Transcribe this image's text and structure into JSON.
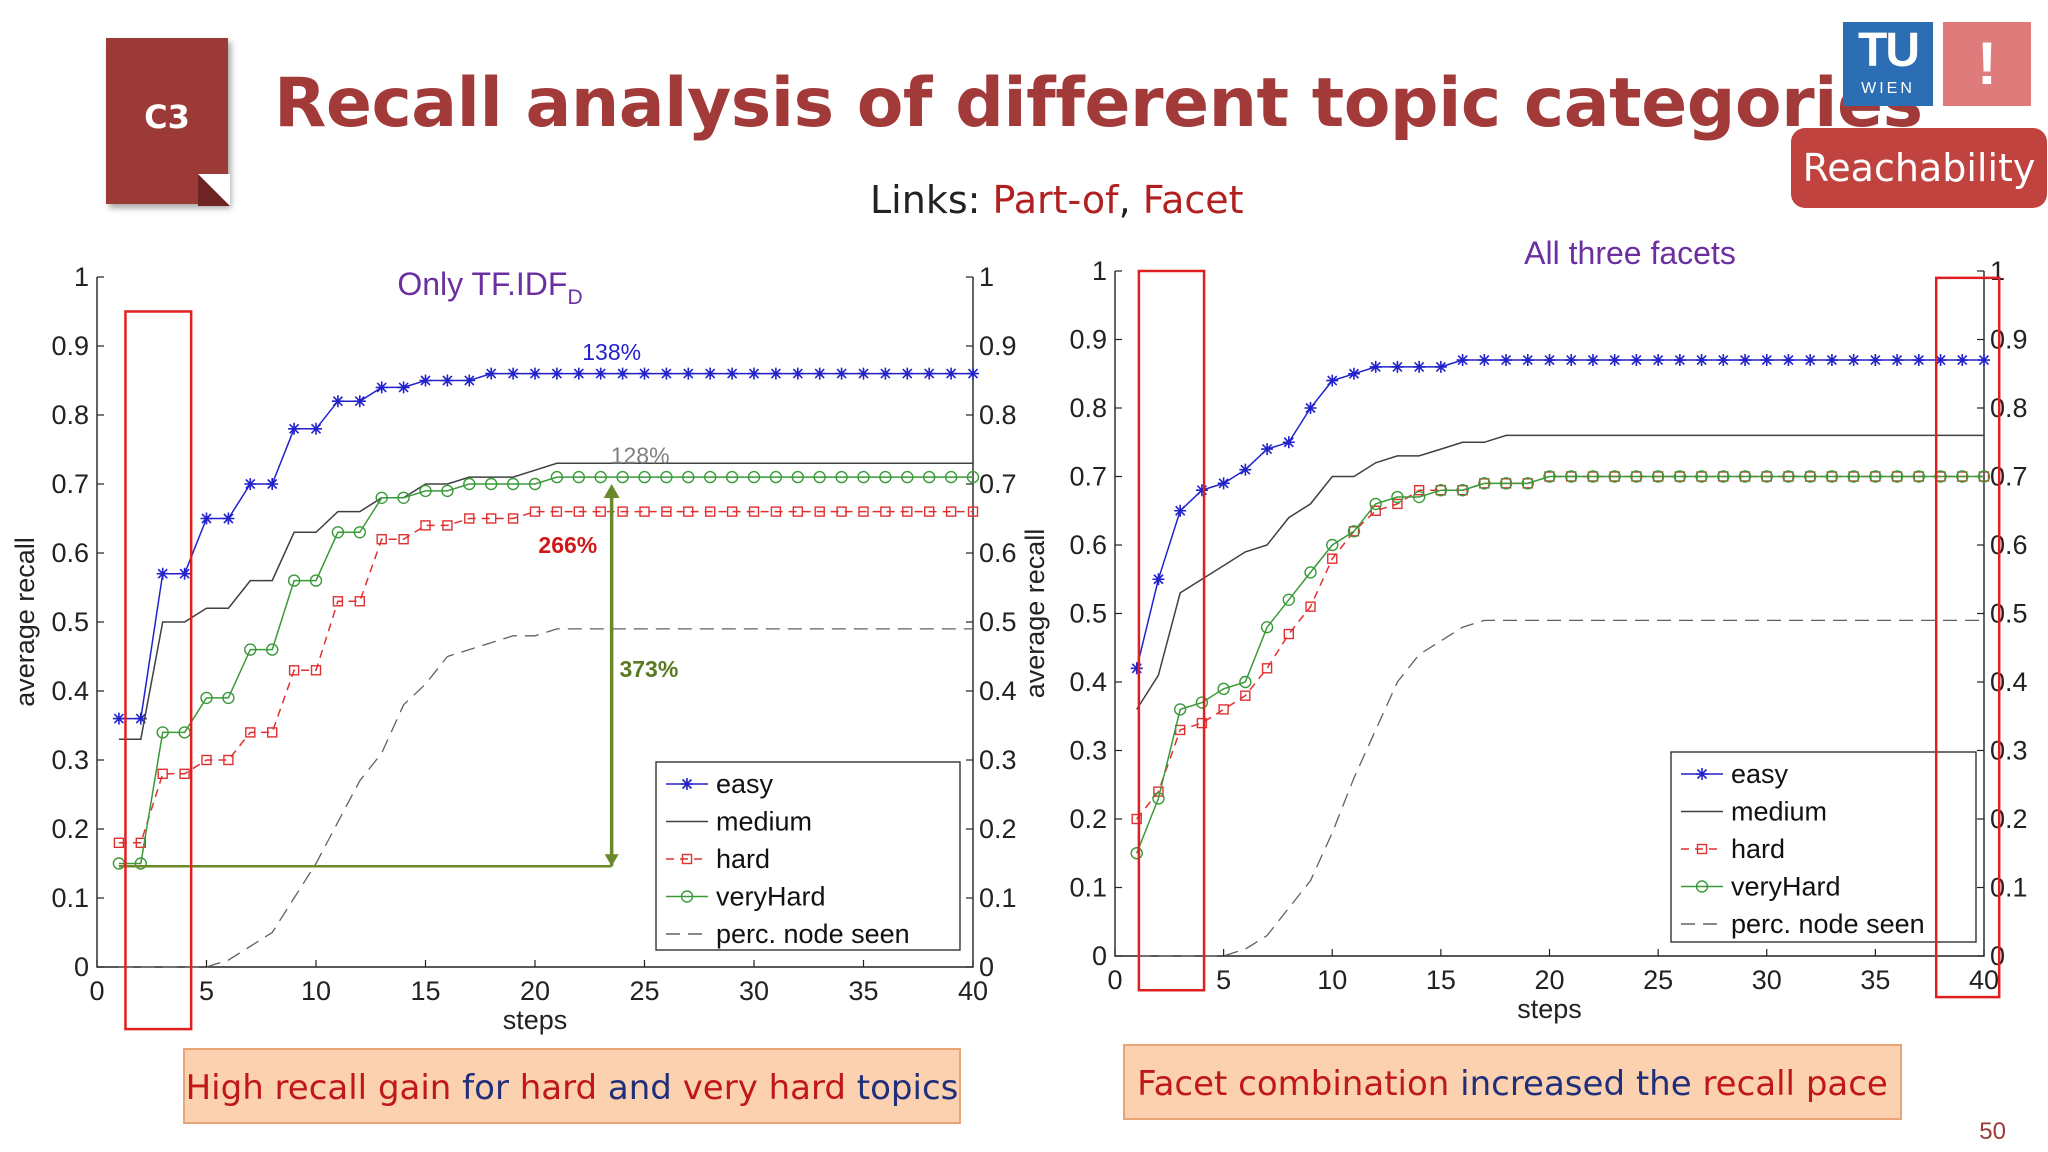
{
  "slide": {
    "badge": "C3",
    "title": "Recall analysis of different topic categories",
    "links_prefix": "Links: ",
    "links_a": "Part-of",
    "links_sep": ", ",
    "links_b": "Facet",
    "logo_tu": "TU",
    "logo_wien": "WIEN",
    "logo_excl": "!",
    "reachability": "Reachability",
    "page_number": "50",
    "colors": {
      "title": "#a23a3a",
      "badge": "#9b3a36",
      "easy": "#2222cc",
      "hard": "#e03030",
      "veryHard": "#3a9a3a",
      "medium": "#404040",
      "seen": "#606060",
      "annotation_arrow": "#6a8a2a"
    }
  },
  "notes": {
    "left": {
      "p1": "High recall gain",
      "p2": " for ",
      "p3": "hard",
      "p4": " and ",
      "p5": "very hard",
      "p6": " topics"
    },
    "right": {
      "p1": "Facet combination",
      "p2": " increased the ",
      "p3": "recall pace"
    }
  },
  "chart_data": [
    {
      "type": "line",
      "title": "Only TF.IDF",
      "title_subscript": "D",
      "xlabel": "steps",
      "ylabel": "average recall",
      "xlim": [
        0,
        40
      ],
      "ylim": [
        0,
        1
      ],
      "xticks": [
        0,
        5,
        10,
        15,
        20,
        25,
        30,
        35,
        40
      ],
      "yticks": [
        0,
        0.1,
        0.2,
        0.3,
        0.4,
        0.5,
        0.6,
        0.7,
        0.8,
        0.9,
        1
      ],
      "ytick_labels": [
        "0",
        "0.1",
        "0.2",
        "0.3",
        "0.4",
        "0.5",
        "0.6",
        "0.7",
        "0.8",
        "0.9",
        "1"
      ],
      "xtick_labels": [
        "0",
        "5",
        "10",
        "15",
        "20",
        "25",
        "30",
        "35",
        "40"
      ],
      "right_yticks": true,
      "grid": false,
      "legend": "bottom-right",
      "series": [
        {
          "name": "easy",
          "marker": "asterisk",
          "dash": "solid",
          "y": [
            0.36,
            0.36,
            0.57,
            0.57,
            0.65,
            0.65,
            0.7,
            0.7,
            0.78,
            0.78,
            0.82,
            0.82,
            0.84,
            0.84,
            0.85,
            0.85,
            0.85,
            0.86,
            0.86,
            0.86,
            0.86,
            0.86,
            0.86,
            0.86,
            0.86,
            0.86,
            0.86,
            0.86,
            0.86,
            0.86,
            0.86,
            0.86,
            0.86,
            0.86,
            0.86,
            0.86,
            0.86,
            0.86,
            0.86,
            0.86
          ]
        },
        {
          "name": "medium",
          "marker": "none",
          "dash": "solid",
          "y": [
            0.33,
            0.33,
            0.5,
            0.5,
            0.52,
            0.52,
            0.56,
            0.56,
            0.63,
            0.63,
            0.66,
            0.66,
            0.68,
            0.68,
            0.7,
            0.7,
            0.71,
            0.71,
            0.71,
            0.72,
            0.73,
            0.73,
            0.73,
            0.73,
            0.73,
            0.73,
            0.73,
            0.73,
            0.73,
            0.73,
            0.73,
            0.73,
            0.73,
            0.73,
            0.73,
            0.73,
            0.73,
            0.73,
            0.73,
            0.73
          ]
        },
        {
          "name": "hard",
          "marker": "square",
          "dash": "dashed",
          "y": [
            0.18,
            0.18,
            0.28,
            0.28,
            0.3,
            0.3,
            0.34,
            0.34,
            0.43,
            0.43,
            0.53,
            0.53,
            0.62,
            0.62,
            0.64,
            0.64,
            0.65,
            0.65,
            0.65,
            0.66,
            0.66,
            0.66,
            0.66,
            0.66,
            0.66,
            0.66,
            0.66,
            0.66,
            0.66,
            0.66,
            0.66,
            0.66,
            0.66,
            0.66,
            0.66,
            0.66,
            0.66,
            0.66,
            0.66,
            0.66
          ]
        },
        {
          "name": "veryHard",
          "marker": "circle",
          "dash": "solid",
          "y": [
            0.15,
            0.15,
            0.34,
            0.34,
            0.39,
            0.39,
            0.46,
            0.46,
            0.56,
            0.56,
            0.63,
            0.63,
            0.68,
            0.68,
            0.69,
            0.69,
            0.7,
            0.7,
            0.7,
            0.7,
            0.71,
            0.71,
            0.71,
            0.71,
            0.71,
            0.71,
            0.71,
            0.71,
            0.71,
            0.71,
            0.71,
            0.71,
            0.71,
            0.71,
            0.71,
            0.71,
            0.71,
            0.71,
            0.71,
            0.71
          ]
        },
        {
          "name": "perc. node seen",
          "marker": "none",
          "dash": "longdash",
          "x": [
            1,
            4,
            5,
            6,
            7,
            8,
            9,
            10,
            11,
            12,
            13,
            14,
            15,
            16,
            17,
            18,
            19,
            20,
            21,
            22,
            23,
            24,
            40
          ],
          "y": [
            0,
            0,
            0,
            0.01,
            0.03,
            0.05,
            0.1,
            0.15,
            0.21,
            0.27,
            0.31,
            0.38,
            0.41,
            0.45,
            0.46,
            0.47,
            0.48,
            0.48,
            0.49,
            0.49,
            0.49,
            0.49,
            0.49
          ]
        }
      ],
      "annotations": [
        {
          "text": "138%",
          "x": 23.5,
          "y": 0.88,
          "color": "#2222cc"
        },
        {
          "text": "128%",
          "x": 24.8,
          "y": 0.73,
          "color": "#808080"
        },
        {
          "text": "266%",
          "x": 21.5,
          "y": 0.6,
          "color": "#d01818",
          "bold": true
        },
        {
          "text": "373%",
          "x": 25.2,
          "y": 0.42,
          "color": "#5a7a22",
          "bold": true
        }
      ],
      "arrow": {
        "x0": 1,
        "y0": 0.146,
        "x1": 23.5,
        "y_top": 0.7,
        "color": "#6a8a2a"
      },
      "highlight_box": {
        "x0": 1.3,
        "x1": 4.3,
        "y0": -0.09,
        "y1": 0.95
      }
    },
    {
      "type": "line",
      "title": "All three facets",
      "xlabel": "steps",
      "ylabel": "average recall",
      "xlim": [
        0,
        40
      ],
      "ylim": [
        0,
        1
      ],
      "xticks": [
        0,
        5,
        10,
        15,
        20,
        25,
        30,
        35,
        40
      ],
      "yticks": [
        0,
        0.1,
        0.2,
        0.3,
        0.4,
        0.5,
        0.6,
        0.7,
        0.8,
        0.9,
        1
      ],
      "ytick_labels": [
        "0",
        "0.1",
        "0.2",
        "0.3",
        "0.4",
        "0.5",
        "0.6",
        "0.7",
        "0.8",
        "0.9",
        "1"
      ],
      "xtick_labels": [
        "0",
        "5",
        "10",
        "15",
        "20",
        "25",
        "30",
        "35",
        "40"
      ],
      "right_yticks": true,
      "grid": false,
      "legend": "bottom-right",
      "series": [
        {
          "name": "easy",
          "marker": "asterisk",
          "dash": "solid",
          "y": [
            0.42,
            0.55,
            0.65,
            0.68,
            0.69,
            0.71,
            0.74,
            0.75,
            0.8,
            0.84,
            0.85,
            0.86,
            0.86,
            0.86,
            0.86,
            0.87,
            0.87,
            0.87,
            0.87,
            0.87,
            0.87,
            0.87,
            0.87,
            0.87,
            0.87,
            0.87,
            0.87,
            0.87,
            0.87,
            0.87,
            0.87,
            0.87,
            0.87,
            0.87,
            0.87,
            0.87,
            0.87,
            0.87,
            0.87,
            0.87
          ]
        },
        {
          "name": "medium",
          "marker": "none",
          "dash": "solid",
          "y": [
            0.36,
            0.41,
            0.53,
            0.55,
            0.57,
            0.59,
            0.6,
            0.64,
            0.66,
            0.7,
            0.7,
            0.72,
            0.73,
            0.73,
            0.74,
            0.75,
            0.75,
            0.76,
            0.76,
            0.76,
            0.76,
            0.76,
            0.76,
            0.76,
            0.76,
            0.76,
            0.76,
            0.76,
            0.76,
            0.76,
            0.76,
            0.76,
            0.76,
            0.76,
            0.76,
            0.76,
            0.76,
            0.76,
            0.76,
            0.76
          ]
        },
        {
          "name": "hard",
          "marker": "square",
          "dash": "dashed",
          "y": [
            0.2,
            0.24,
            0.33,
            0.34,
            0.36,
            0.38,
            0.42,
            0.47,
            0.51,
            0.58,
            0.62,
            0.65,
            0.66,
            0.68,
            0.68,
            0.68,
            0.69,
            0.69,
            0.69,
            0.7,
            0.7,
            0.7,
            0.7,
            0.7,
            0.7,
            0.7,
            0.7,
            0.7,
            0.7,
            0.7,
            0.7,
            0.7,
            0.7,
            0.7,
            0.7,
            0.7,
            0.7,
            0.7,
            0.7,
            0.7
          ]
        },
        {
          "name": "veryHard",
          "marker": "circle",
          "dash": "solid",
          "y": [
            0.15,
            0.23,
            0.36,
            0.37,
            0.39,
            0.4,
            0.48,
            0.52,
            0.56,
            0.6,
            0.62,
            0.66,
            0.67,
            0.67,
            0.68,
            0.68,
            0.69,
            0.69,
            0.69,
            0.7,
            0.7,
            0.7,
            0.7,
            0.7,
            0.7,
            0.7,
            0.7,
            0.7,
            0.7,
            0.7,
            0.7,
            0.7,
            0.7,
            0.7,
            0.7,
            0.7,
            0.7,
            0.7,
            0.7,
            0.7
          ]
        },
        {
          "name": "perc. node seen",
          "marker": "none",
          "dash": "longdash",
          "x": [
            1,
            4,
            5,
            6,
            7,
            8,
            9,
            10,
            11,
            12,
            13,
            14,
            15,
            16,
            17,
            18,
            19,
            20,
            40
          ],
          "y": [
            0,
            0,
            0,
            0.01,
            0.03,
            0.07,
            0.11,
            0.18,
            0.26,
            0.33,
            0.4,
            0.44,
            0.46,
            0.48,
            0.49,
            0.49,
            0.49,
            0.49,
            0.49
          ]
        }
      ],
      "highlight_boxes": [
        {
          "x0": 1.1,
          "x1": 4.1,
          "y0": -0.05,
          "y1": 1.0
        },
        {
          "x0": 37.8,
          "x1": 40.7,
          "y0": -0.06,
          "y1": 0.99
        }
      ]
    }
  ]
}
